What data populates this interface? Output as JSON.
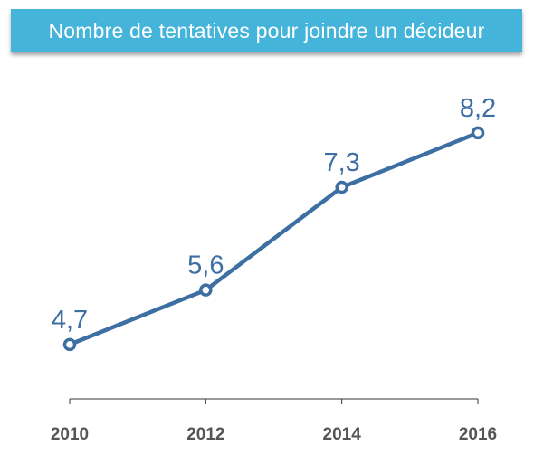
{
  "title": "Nombre de tentatives pour joindre un décideur",
  "colors": {
    "banner": "#45b4db",
    "line": "#3d6fa3",
    "axis": "#333333",
    "tick_text": "#555555"
  },
  "chart_data": {
    "type": "line",
    "title": "Nombre de tentatives pour joindre un décideur",
    "xlabel": "",
    "ylabel": "",
    "categories": [
      "2010",
      "2012",
      "2014",
      "2016"
    ],
    "series": [
      {
        "values": [
          4.7,
          5.6,
          7.3,
          8.2
        ],
        "labels": [
          "4,7",
          "5,6",
          "7,3",
          "8,2"
        ]
      }
    ],
    "ylim": [
      3.8,
      9.5
    ],
    "grid": false,
    "legend": "none"
  }
}
